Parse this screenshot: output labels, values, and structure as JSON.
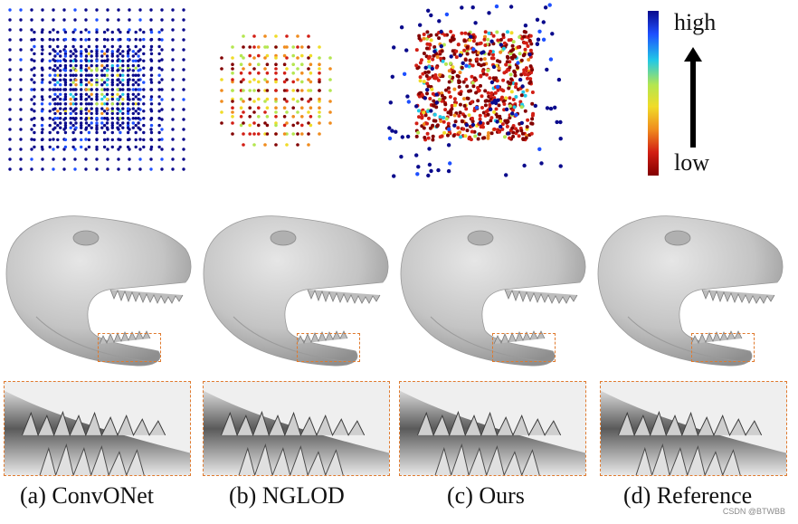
{
  "figure": {
    "panels": [
      {
        "id": "a",
        "label": "(a) ConvONet",
        "cloud": "grid-dense"
      },
      {
        "id": "b",
        "label": "(b) NGLOD",
        "cloud": "grid-sparse"
      },
      {
        "id": "c",
        "label": "(c) Ours",
        "cloud": "adaptive"
      },
      {
        "id": "d",
        "label": "(d) Reference",
        "cloud": "none"
      }
    ],
    "colorbar": {
      "high_label": "high",
      "low_label": "low",
      "colors": [
        "#0a0a8c",
        "#1e50ff",
        "#22c8e6",
        "#b4e650",
        "#f0dc28",
        "#f08c1e",
        "#d21e14",
        "#820000"
      ]
    },
    "watermark": "CSDN @BTWBB"
  }
}
